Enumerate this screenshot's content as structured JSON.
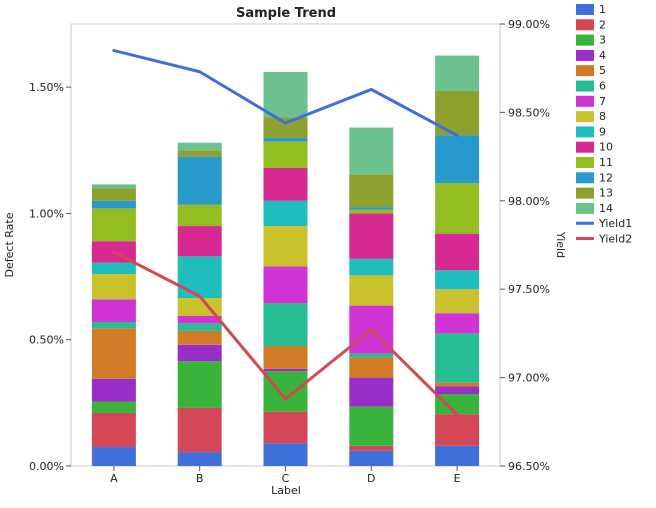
{
  "chart_data": {
    "type": "bar",
    "stacked": true,
    "title": "Sample Trend",
    "xlabel": "Label",
    "ylabel": "Defect Rate",
    "y2label": "Yield",
    "categories": [
      "A",
      "B",
      "C",
      "D",
      "E"
    ],
    "ylim": [
      0,
      1.75
    ],
    "y_ticks": [
      "0.00%",
      "0.50%",
      "1.00%",
      "1.50%"
    ],
    "y_tick_values": [
      0,
      0.5,
      1.0,
      1.5
    ],
    "y2lim": [
      96.5,
      99.0
    ],
    "y2_ticks": [
      "96.50%",
      "97.00%",
      "97.50%",
      "98.00%",
      "98.50%",
      "99.00%"
    ],
    "y2_tick_values": [
      96.5,
      97.0,
      97.5,
      98.0,
      98.5,
      99.0
    ],
    "grid": false,
    "legend_position": "right",
    "series": [
      {
        "name": "1",
        "color": "#3f6fd8",
        "values": [
          0.075,
          0.055,
          0.09,
          0.06,
          0.08
        ]
      },
      {
        "name": "2",
        "color": "#d34756",
        "values": [
          0.135,
          0.175,
          0.125,
          0.02,
          0.125
        ]
      },
      {
        "name": "3",
        "color": "#39b33c",
        "values": [
          0.045,
          0.185,
          0.16,
          0.155,
          0.08
        ]
      },
      {
        "name": "4",
        "color": "#9a2ec9",
        "values": [
          0.09,
          0.065,
          0.01,
          0.115,
          0.03
        ]
      },
      {
        "name": "5",
        "color": "#d17b26",
        "values": [
          0.2,
          0.055,
          0.09,
          0.08,
          0.015
        ]
      },
      {
        "name": "6",
        "color": "#26bc94",
        "values": [
          0.025,
          0.03,
          0.17,
          0.015,
          0.195
        ]
      },
      {
        "name": "7",
        "color": "#d034d4",
        "values": [
          0.09,
          0.03,
          0.145,
          0.19,
          0.08
        ]
      },
      {
        "name": "8",
        "color": "#c9c22d",
        "values": [
          0.1,
          0.07,
          0.16,
          0.12,
          0.095
        ]
      },
      {
        "name": "9",
        "color": "#20bdbd",
        "values": [
          0.045,
          0.165,
          0.1,
          0.065,
          0.075
        ]
      },
      {
        "name": "10",
        "color": "#d62a92",
        "values": [
          0.085,
          0.12,
          0.13,
          0.18,
          0.145
        ]
      },
      {
        "name": "11",
        "color": "#94bd21",
        "values": [
          0.13,
          0.085,
          0.105,
          0.015,
          0.2
        ]
      },
      {
        "name": "12",
        "color": "#2799cb",
        "values": [
          0.03,
          0.19,
          0.015,
          0.01,
          0.19
        ]
      },
      {
        "name": "13",
        "color": "#8ea02d",
        "values": [
          0.05,
          0.025,
          0.08,
          0.13,
          0.175
        ]
      },
      {
        "name": "14",
        "color": "#6bc28f",
        "values": [
          0.015,
          0.03,
          0.18,
          0.185,
          0.14
        ]
      }
    ],
    "lines": [
      {
        "name": "Yield1",
        "color": "#3f6fd8",
        "axis": "y2",
        "values": [
          98.85,
          98.73,
          98.44,
          98.63,
          98.37
        ]
      },
      {
        "name": "Yield2",
        "color": "#d34756",
        "axis": "y2",
        "values": [
          97.71,
          97.46,
          96.88,
          97.27,
          96.79
        ]
      }
    ]
  }
}
